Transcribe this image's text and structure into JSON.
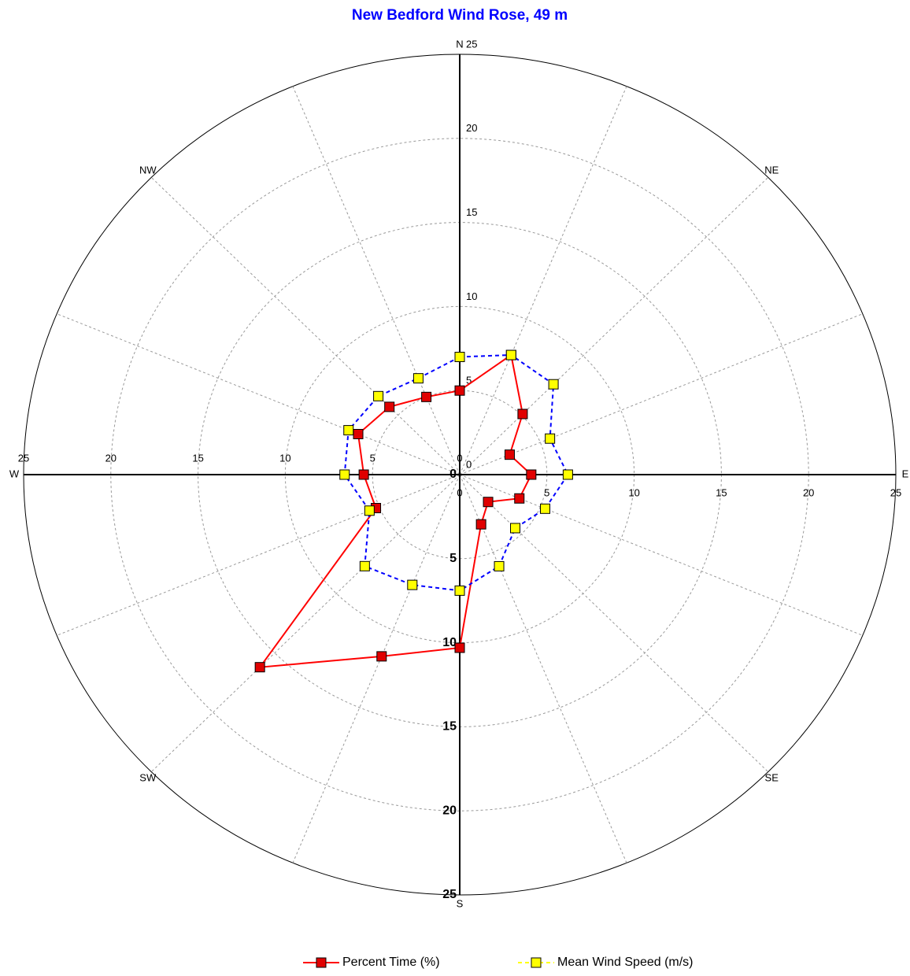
{
  "chart_data": {
    "type": "polar",
    "title": "New Bedford Wind Rose, 49 m",
    "categories": [
      "N",
      null,
      "NE",
      null,
      "E",
      null,
      "SE",
      null,
      "S",
      null,
      "SW",
      null,
      "W",
      null,
      "NW",
      null
    ],
    "rlim": [
      0,
      25
    ],
    "rticks": [
      0,
      5,
      10,
      15,
      20,
      25
    ],
    "grid": true,
    "legend": "bottom",
    "series": [
      {
        "name": "Percent Time (%)",
        "color": "#ff0000",
        "marker_color": "#e00000",
        "line_style": "solid",
        "values": [
          5.0,
          7.7,
          5.1,
          3.1,
          4.1,
          3.7,
          2.3,
          3.2,
          10.3,
          11.7,
          16.2,
          5.2,
          5.5,
          6.3,
          5.7,
          5.0
        ]
      },
      {
        "name": "Mean Wind Speed (m/s)",
        "color": "#0000ff",
        "marker_color": "#ffff00",
        "line_style": "dashed",
        "values": [
          7.0,
          7.7,
          7.6,
          5.6,
          6.2,
          5.3,
          4.5,
          5.9,
          6.9,
          7.1,
          7.7,
          5.6,
          6.6,
          6.9,
          6.6,
          6.2
        ]
      }
    ]
  }
}
